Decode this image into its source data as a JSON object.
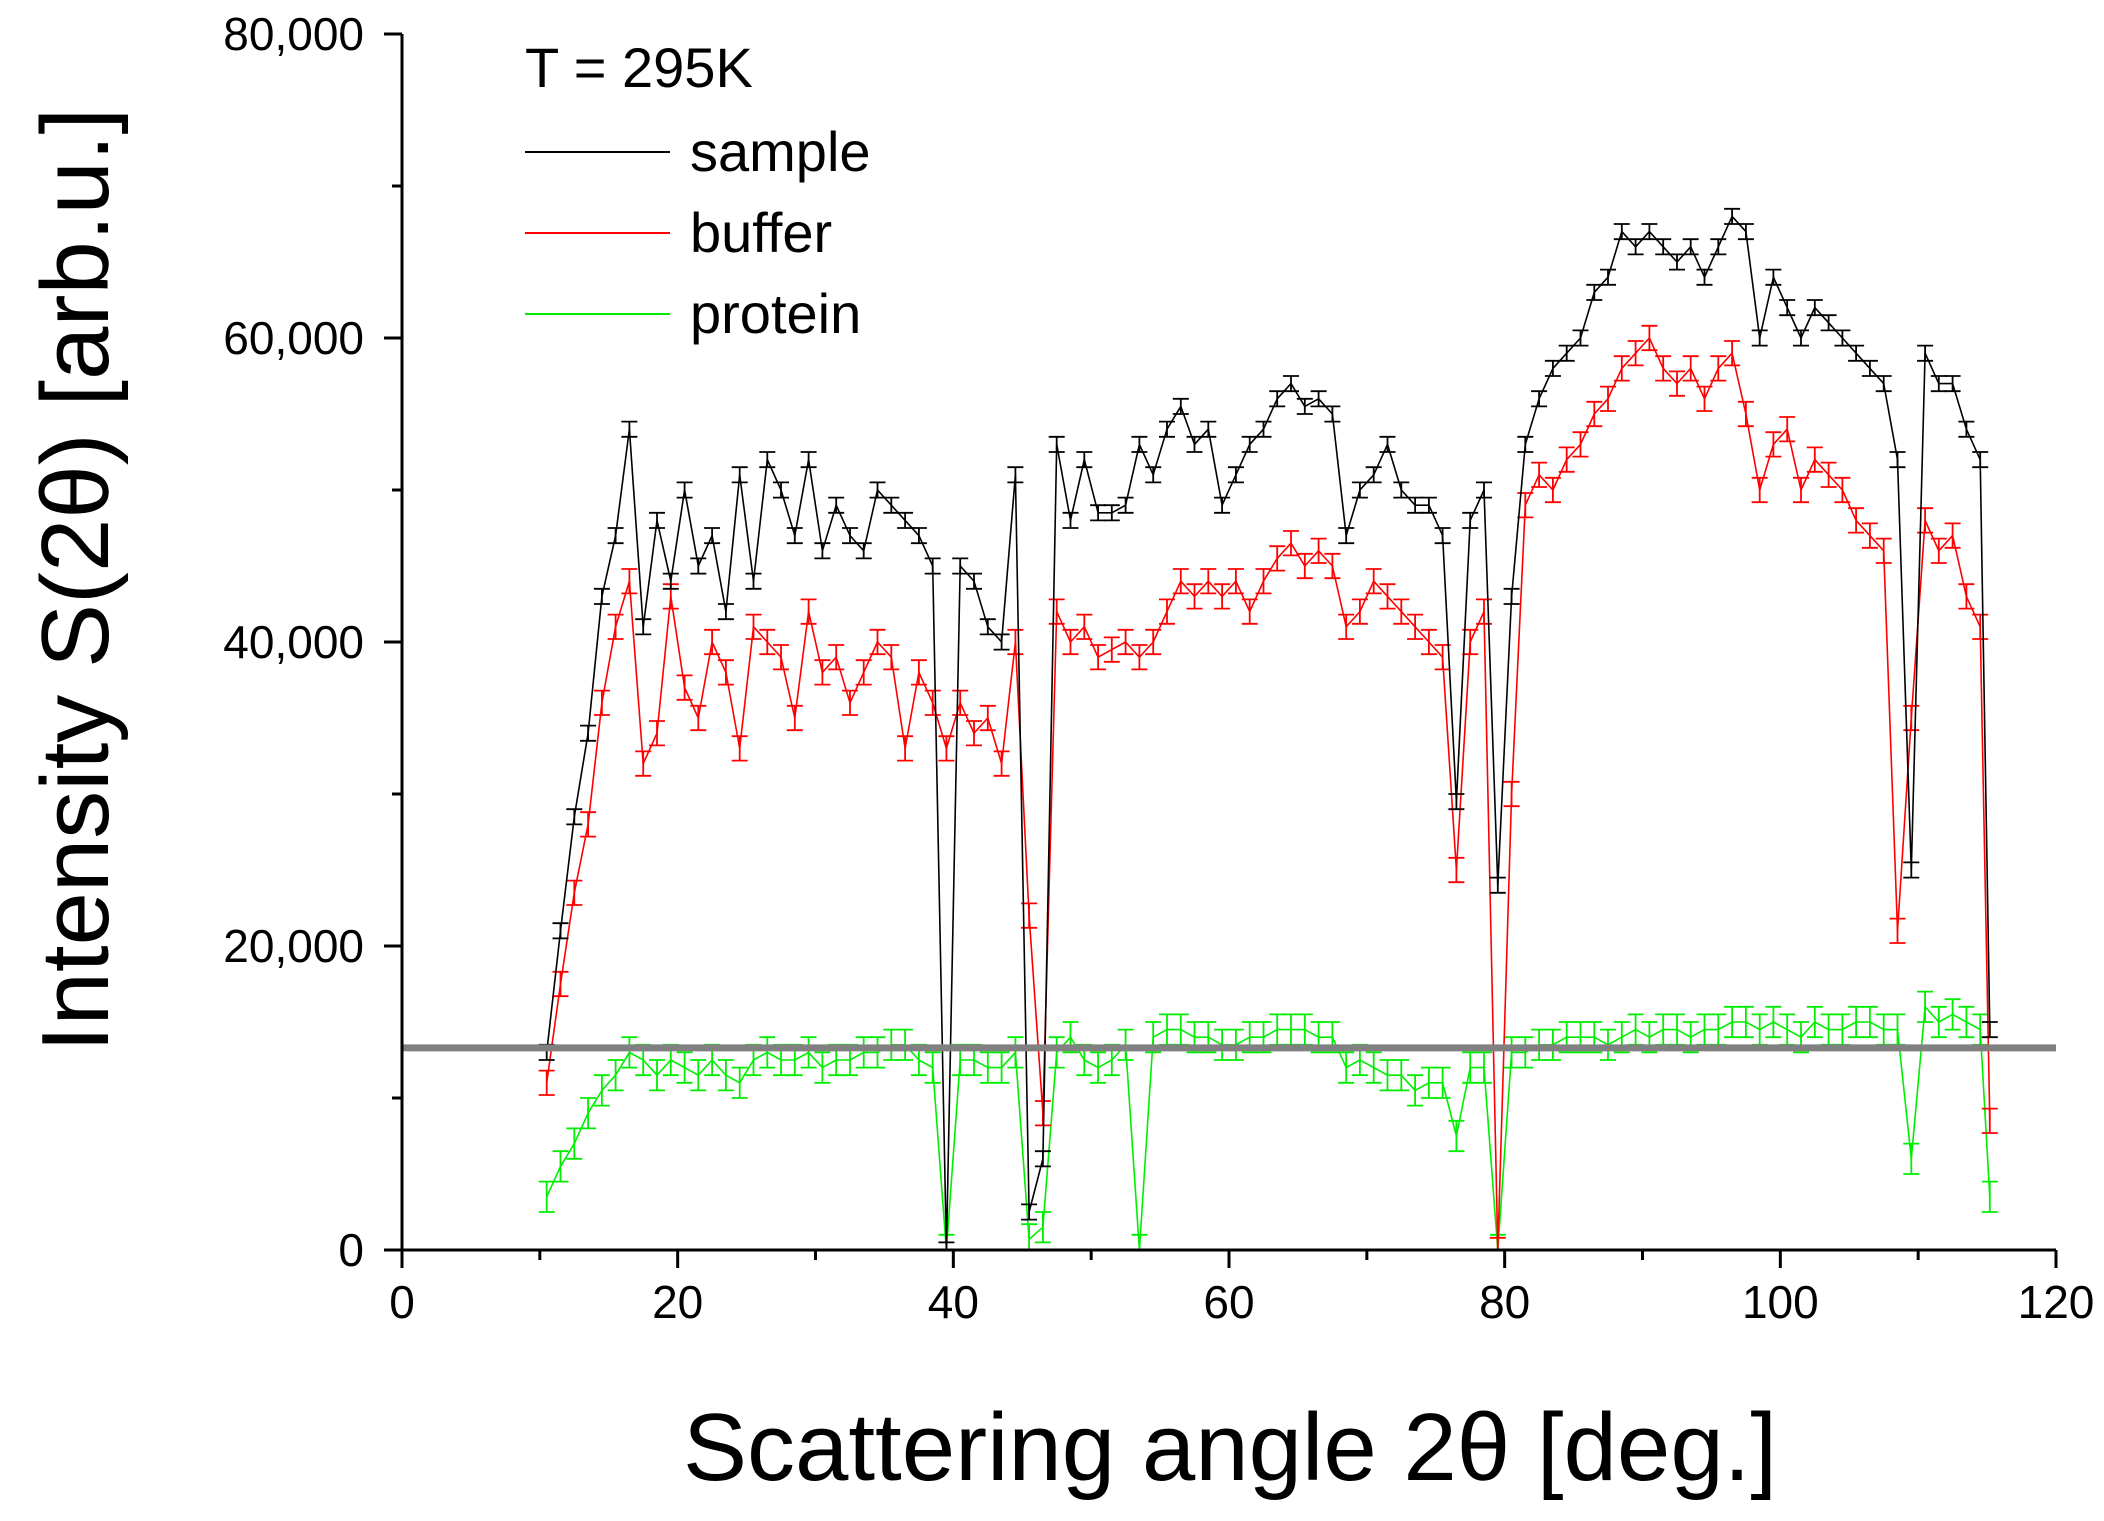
{
  "chart_data": {
    "type": "line",
    "title": "",
    "annotation": "T = 295K",
    "xlabel": "Scattering angle 2θ [deg.]",
    "ylabel": "Intensity S(2θ) [arb.u.]",
    "xlim": [
      0,
      120
    ],
    "ylim": [
      0,
      80000
    ],
    "x_ticks": [
      0,
      20,
      40,
      60,
      80,
      100,
      120
    ],
    "y_ticks": [
      0,
      20000,
      40000,
      60000,
      80000
    ],
    "x_tick_labels": [
      "0",
      "20",
      "40",
      "60",
      "80",
      "100",
      "120"
    ],
    "y_tick_labels": [
      "0",
      "20,000",
      "40,000",
      "60,000",
      "80,000"
    ],
    "grid": false,
    "legend_position": "top-left",
    "reference_line": {
      "y": 13300,
      "color": "#808080"
    },
    "x": [
      10.5,
      11.5,
      12.5,
      13.5,
      14.5,
      15.5,
      16.5,
      17.5,
      18.5,
      19.5,
      20.5,
      21.5,
      22.5,
      23.5,
      24.5,
      25.5,
      26.5,
      27.5,
      28.5,
      29.5,
      30.5,
      31.5,
      32.5,
      33.5,
      34.5,
      35.5,
      36.5,
      37.5,
      38.5,
      39.5,
      40.5,
      41.5,
      42.5,
      43.5,
      44.5,
      45.5,
      46.5,
      47.5,
      48.5,
      49.5,
      50.5,
      51.5,
      52.5,
      53.5,
      54.5,
      55.5,
      56.5,
      57.5,
      58.5,
      59.5,
      60.5,
      61.5,
      62.5,
      63.5,
      64.5,
      65.5,
      66.5,
      67.5,
      68.5,
      69.5,
      70.5,
      71.5,
      72.5,
      73.5,
      74.5,
      75.5,
      76.5,
      77.5,
      78.5,
      79.5,
      80.5,
      81.5,
      82.5,
      83.5,
      84.5,
      85.5,
      86.5,
      87.5,
      88.5,
      89.5,
      90.5,
      91.5,
      92.5,
      93.5,
      94.5,
      95.5,
      96.5,
      97.5,
      98.5,
      99.5,
      100.5,
      101.5,
      102.5,
      103.5,
      104.5,
      105.5,
      106.5,
      107.5,
      108.5,
      109.5,
      110.5,
      111.5,
      112.5,
      113.5,
      114.5,
      115.2
    ],
    "series": [
      {
        "name": "sample",
        "color": "#000000",
        "error": 500,
        "values": [
          13000,
          21000,
          28500,
          34000,
          43000,
          47000,
          54000,
          41000,
          48000,
          44000,
          50000,
          45000,
          47000,
          42000,
          51000,
          44000,
          52000,
          50000,
          47000,
          52000,
          46000,
          49000,
          47000,
          46000,
          50000,
          49000,
          48000,
          47000,
          45000,
          0,
          45000,
          44000,
          41000,
          40000,
          51000,
          2500,
          6000,
          53000,
          48000,
          52000,
          48500,
          48500,
          49000,
          53000,
          51000,
          54000,
          55500,
          53000,
          54000,
          49000,
          51000,
          53000,
          54000,
          56000,
          57000,
          55500,
          56000,
          55000,
          47000,
          50000,
          51000,
          53000,
          50000,
          49000,
          49000,
          47000,
          29500,
          48000,
          50000,
          24000,
          43000,
          53000,
          56000,
          58000,
          59000,
          60000,
          63000,
          64000,
          67000,
          66000,
          67000,
          66000,
          65000,
          66000,
          64000,
          66000,
          68000,
          67000,
          60000,
          64000,
          62000,
          60000,
          62000,
          61000,
          60000,
          59000,
          58000,
          57000,
          52000,
          25000,
          59000,
          57000,
          57000,
          54000,
          52000,
          14500
        ]
      },
      {
        "name": "buffer",
        "color": "#ff0000",
        "error": 800,
        "values": [
          11000,
          17500,
          23500,
          28000,
          36000,
          41000,
          44000,
          32000,
          34000,
          43000,
          37000,
          35000,
          40000,
          38000,
          33000,
          41000,
          40000,
          39000,
          35000,
          42000,
          38000,
          39000,
          36000,
          38000,
          40000,
          39000,
          33000,
          38000,
          36000,
          33000,
          36000,
          34000,
          35000,
          32000,
          40000,
          22000,
          9000,
          42000,
          40000,
          41000,
          39000,
          39500,
          40000,
          39000,
          40000,
          42000,
          44000,
          43000,
          44000,
          43000,
          44000,
          42000,
          44000,
          45500,
          46500,
          45000,
          46000,
          45000,
          41000,
          42000,
          44000,
          43000,
          42000,
          41000,
          40000,
          39000,
          25000,
          40000,
          42000,
          0,
          30000,
          49000,
          51000,
          50000,
          52000,
          53000,
          55000,
          56000,
          58000,
          59000,
          60000,
          58000,
          57000,
          58000,
          56000,
          58000,
          59000,
          55000,
          50000,
          53000,
          54000,
          50000,
          52000,
          51000,
          50000,
          48000,
          47000,
          46000,
          21000,
          35000,
          48000,
          46000,
          47000,
          43000,
          41000,
          8500
        ]
      },
      {
        "name": "protein",
        "color": "#00ee00",
        "error": 1000,
        "values": [
          3500,
          5500,
          7000,
          9000,
          10500,
          11500,
          13000,
          12500,
          11500,
          12500,
          12000,
          11500,
          12500,
          11500,
          11000,
          12500,
          13000,
          12500,
          12500,
          13000,
          12000,
          12500,
          12500,
          13000,
          13000,
          13500,
          13500,
          12500,
          12000,
          0,
          12500,
          12500,
          12000,
          12000,
          13000,
          700,
          1500,
          13000,
          14000,
          12500,
          12000,
          12500,
          13500,
          0,
          14000,
          14500,
          14500,
          14000,
          14000,
          13500,
          13500,
          14000,
          14000,
          14500,
          14500,
          14500,
          14000,
          14000,
          12000,
          12500,
          12000,
          11500,
          11500,
          10500,
          11000,
          11000,
          7500,
          12000,
          12000,
          0,
          13000,
          13000,
          13500,
          13500,
          14000,
          14000,
          14000,
          13500,
          14000,
          14500,
          14000,
          14500,
          14500,
          14000,
          14500,
          14500,
          15000,
          15000,
          14500,
          15000,
          14500,
          14000,
          15000,
          14500,
          14500,
          15000,
          15000,
          14500,
          14500,
          6000,
          16000,
          15000,
          15500,
          15000,
          14500,
          3500
        ]
      }
    ]
  }
}
